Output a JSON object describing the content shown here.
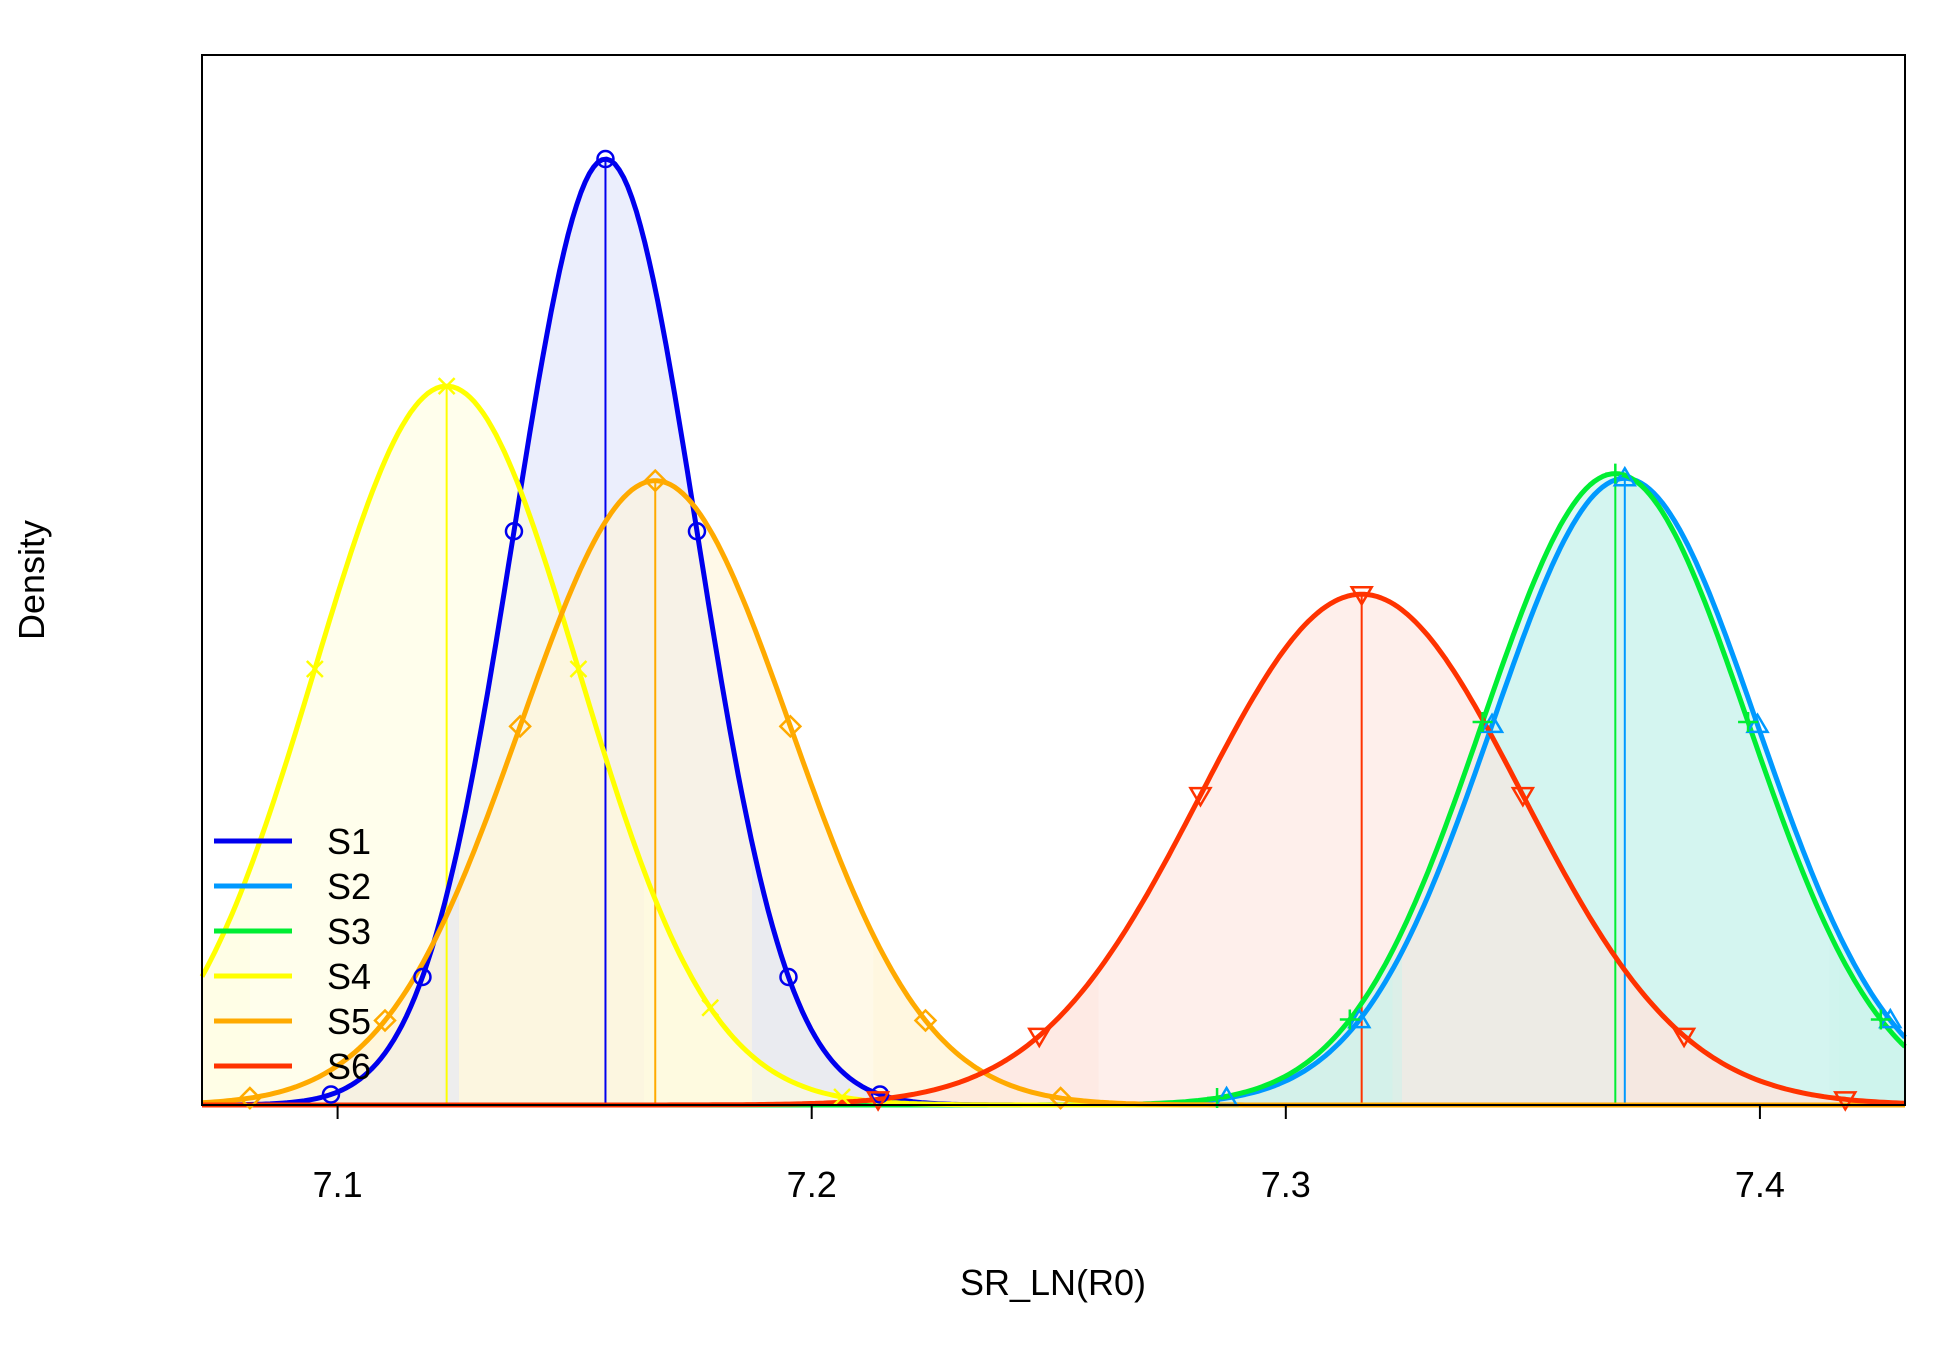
{
  "chart_data": {
    "type": "area",
    "xlabel": "SR_LN(R0)",
    "ylabel": "Density",
    "xlim": [
      7.0714,
      7.4306
    ],
    "ylim": [
      0,
      22.2
    ],
    "grid": false,
    "legend_position": "bottom-left",
    "x_ticks": [
      {
        "value": 7.1,
        "label": "7.1"
      },
      {
        "value": 7.2,
        "label": "7.2"
      },
      {
        "value": 7.3,
        "label": "7.3"
      },
      {
        "value": 7.4,
        "label": "7.4"
      }
    ],
    "series": [
      {
        "name": "S1",
        "color": "#0000ee",
        "fill": "#dde3fa",
        "marker": "circle",
        "mean": 7.1565,
        "sd": 0.0193,
        "peak": 20.0,
        "median": 7.1565,
        "ci": [
          7.1256,
          7.1874
        ]
      },
      {
        "name": "S2",
        "color": "#0099ff",
        "fill": "#cbf4ec",
        "marker": "triangle",
        "mean": 7.3715,
        "sd": 0.028,
        "peak": 13.25,
        "median": 7.3715,
        "ci": [
          7.3245,
          7.4167
        ]
      },
      {
        "name": "S3",
        "color": "#00ee33",
        "fill": "#cbf4ec",
        "marker": "plus",
        "mean": 7.3695,
        "sd": 0.028,
        "peak": 13.35,
        "median": 7.3695,
        "ci": [
          7.3225,
          7.4147
        ]
      },
      {
        "name": "S4",
        "color": "#ffff00",
        "fill": "#fffee0",
        "marker": "cross",
        "mean": 7.123,
        "sd": 0.0278,
        "peak": 15.2,
        "median": 7.123,
        "ci": [
          7.0815,
          7.1646
        ]
      },
      {
        "name": "S5",
        "color": "#ffaa00",
        "fill": "#fff5d8",
        "marker": "diamond",
        "mean": 7.167,
        "sd": 0.0285,
        "peak": 13.2,
        "median": 7.167,
        "ci": [
          7.1225,
          7.213
        ]
      },
      {
        "name": "S6",
        "color": "#ff3300",
        "fill": "#fee5de",
        "marker": "triangle-down",
        "mean": 7.316,
        "sd": 0.034,
        "peak": 10.8,
        "median": 7.316,
        "ci": [
          7.2605,
          7.371
        ]
      }
    ]
  }
}
